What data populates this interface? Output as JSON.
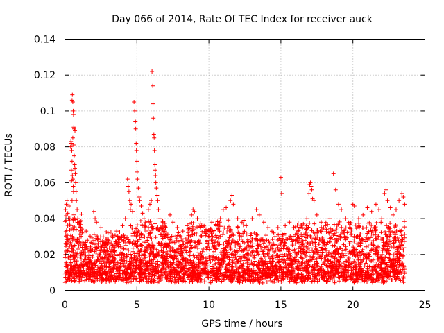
{
  "chart_data": {
    "type": "scatter",
    "title": "Day 066 of 2014, Rate Of TEC Index for receiver auck",
    "xlabel": "GPS time / hours",
    "ylabel": "ROTI / TECUs",
    "xlim": [
      0,
      25
    ],
    "ylim": [
      0,
      0.14
    ],
    "x_ticks": [
      0,
      5,
      10,
      15,
      20,
      25
    ],
    "y_ticks": [
      0,
      0.02,
      0.04,
      0.06,
      0.08,
      0.1,
      0.12,
      0.14
    ],
    "x_tick_labels": [
      "0",
      "5",
      "10",
      "15",
      "20",
      "25"
    ],
    "y_tick_labels": [
      "0",
      "0.02",
      "0.04",
      "0.06",
      "0.08",
      "0.1",
      "0.12",
      "0.14"
    ],
    "grid": true,
    "legend": "none",
    "marker": "plus",
    "color": "#ff0000",
    "points": [
      [
        0.05,
        0.045
      ],
      [
        0.1,
        0.048
      ],
      [
        0.15,
        0.05
      ],
      [
        0.2,
        0.043
      ],
      [
        0.3,
        0.047
      ],
      [
        0.35,
        0.04
      ],
      [
        0.4,
        0.08
      ],
      [
        0.42,
        0.083
      ],
      [
        0.45,
        0.082
      ],
      [
        0.48,
        0.078
      ],
      [
        0.5,
        0.072
      ],
      [
        0.52,
        0.064
      ],
      [
        0.55,
        0.062
      ],
      [
        0.58,
        0.058
      ],
      [
        0.6,
        0.055
      ],
      [
        0.5,
        0.05
      ],
      [
        0.45,
        0.067
      ],
      [
        0.47,
        0.061
      ],
      [
        0.5,
        0.106
      ],
      [
        0.52,
        0.109
      ],
      [
        0.55,
        0.105
      ],
      [
        0.58,
        0.1
      ],
      [
        0.6,
        0.098
      ],
      [
        0.62,
        0.091
      ],
      [
        0.65,
        0.09
      ],
      [
        0.7,
        0.089
      ],
      [
        0.55,
        0.085
      ],
      [
        0.6,
        0.081
      ],
      [
        0.65,
        0.075
      ],
      [
        0.68,
        0.07
      ],
      [
        0.7,
        0.068
      ],
      [
        0.72,
        0.065
      ],
      [
        0.75,
        0.06
      ],
      [
        0.78,
        0.055
      ],
      [
        0.8,
        0.05
      ],
      [
        0.85,
        0.045
      ],
      [
        0.9,
        0.04
      ],
      [
        1.0,
        0.038
      ],
      [
        1.1,
        0.035
      ],
      [
        1.2,
        0.032
      ],
      [
        2.0,
        0.044
      ],
      [
        2.1,
        0.04
      ],
      [
        2.2,
        0.038
      ],
      [
        2.5,
        0.035
      ],
      [
        3.0,
        0.032
      ],
      [
        3.3,
        0.03
      ],
      [
        3.6,
        0.033
      ],
      [
        4.0,
        0.036
      ],
      [
        4.2,
        0.04
      ],
      [
        4.35,
        0.062
      ],
      [
        4.4,
        0.058
      ],
      [
        4.45,
        0.055
      ],
      [
        4.5,
        0.05
      ],
      [
        4.55,
        0.045
      ],
      [
        4.6,
        0.048
      ],
      [
        4.7,
        0.044
      ],
      [
        4.8,
        0.105
      ],
      [
        4.85,
        0.1
      ],
      [
        4.9,
        0.094
      ],
      [
        4.92,
        0.09
      ],
      [
        4.95,
        0.082
      ],
      [
        4.97,
        0.078
      ],
      [
        5.0,
        0.072
      ],
      [
        5.02,
        0.066
      ],
      [
        5.05,
        0.062
      ],
      [
        5.1,
        0.057
      ],
      [
        5.15,
        0.052
      ],
      [
        5.2,
        0.05
      ],
      [
        5.3,
        0.047
      ],
      [
        5.4,
        0.043
      ],
      [
        5.5,
        0.04
      ],
      [
        5.6,
        0.038
      ],
      [
        5.8,
        0.045
      ],
      [
        5.9,
        0.048
      ],
      [
        6.0,
        0.05
      ],
      [
        6.05,
        0.122
      ],
      [
        6.1,
        0.114
      ],
      [
        6.12,
        0.104
      ],
      [
        6.15,
        0.096
      ],
      [
        6.18,
        0.087
      ],
      [
        6.2,
        0.085
      ],
      [
        6.22,
        0.078
      ],
      [
        6.25,
        0.07
      ],
      [
        6.28,
        0.067
      ],
      [
        6.3,
        0.064
      ],
      [
        6.32,
        0.06
      ],
      [
        6.35,
        0.057
      ],
      [
        6.4,
        0.053
      ],
      [
        6.45,
        0.05
      ],
      [
        6.5,
        0.045
      ],
      [
        6.6,
        0.04
      ],
      [
        6.8,
        0.038
      ],
      [
        7.0,
        0.035
      ],
      [
        7.3,
        0.042
      ],
      [
        7.5,
        0.038
      ],
      [
        7.8,
        0.035
      ],
      [
        8.2,
        0.033
      ],
      [
        8.5,
        0.036
      ],
      [
        8.8,
        0.042
      ],
      [
        8.9,
        0.045
      ],
      [
        9.0,
        0.044
      ],
      [
        9.2,
        0.04
      ],
      [
        9.5,
        0.036
      ],
      [
        9.8,
        0.034
      ],
      [
        10.2,
        0.038
      ],
      [
        10.5,
        0.036
      ],
      [
        10.8,
        0.04
      ],
      [
        11.0,
        0.045
      ],
      [
        11.2,
        0.046
      ],
      [
        11.5,
        0.05
      ],
      [
        11.6,
        0.053
      ],
      [
        11.7,
        0.048
      ],
      [
        12.0,
        0.04
      ],
      [
        12.3,
        0.038
      ],
      [
        12.6,
        0.036
      ],
      [
        13.0,
        0.04
      ],
      [
        13.3,
        0.045
      ],
      [
        13.5,
        0.042
      ],
      [
        13.8,
        0.038
      ],
      [
        14.1,
        0.035
      ],
      [
        14.5,
        0.032
      ],
      [
        14.8,
        0.035
      ],
      [
        15.0,
        0.063
      ],
      [
        15.05,
        0.054
      ],
      [
        15.3,
        0.036
      ],
      [
        15.6,
        0.038
      ],
      [
        15.9,
        0.035
      ],
      [
        16.2,
        0.033
      ],
      [
        16.5,
        0.035
      ],
      [
        16.8,
        0.04
      ],
      [
        16.95,
        0.054
      ],
      [
        17.0,
        0.059
      ],
      [
        17.05,
        0.06
      ],
      [
        17.1,
        0.058
      ],
      [
        17.15,
        0.056
      ],
      [
        17.2,
        0.051
      ],
      [
        17.3,
        0.05
      ],
      [
        17.5,
        0.042
      ],
      [
        17.8,
        0.038
      ],
      [
        18.1,
        0.036
      ],
      [
        18.4,
        0.04
      ],
      [
        18.65,
        0.065
      ],
      [
        18.8,
        0.056
      ],
      [
        19.0,
        0.048
      ],
      [
        19.2,
        0.045
      ],
      [
        19.5,
        0.04
      ],
      [
        19.8,
        0.038
      ],
      [
        20.0,
        0.048
      ],
      [
        20.1,
        0.047
      ],
      [
        20.4,
        0.04
      ],
      [
        20.7,
        0.042
      ],
      [
        21.0,
        0.046
      ],
      [
        21.3,
        0.044
      ],
      [
        21.6,
        0.048
      ],
      [
        21.8,
        0.045
      ],
      [
        22.0,
        0.04
      ],
      [
        22.2,
        0.054
      ],
      [
        22.3,
        0.056
      ],
      [
        22.4,
        0.05
      ],
      [
        22.6,
        0.046
      ],
      [
        22.8,
        0.042
      ],
      [
        23.0,
        0.045
      ],
      [
        23.2,
        0.05
      ],
      [
        23.4,
        0.054
      ],
      [
        23.5,
        0.052
      ],
      [
        23.6,
        0.048
      ]
    ]
  }
}
